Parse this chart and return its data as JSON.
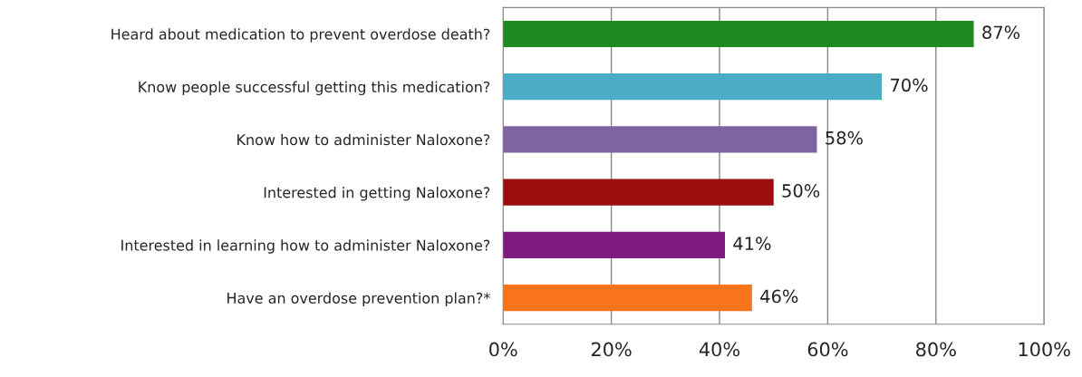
{
  "chart_data": {
    "type": "bar",
    "orientation": "horizontal",
    "categories": [
      "Heard about medication to prevent overdose death?",
      "Know people successful getting this medication?",
      "Know how to administer Naloxone?",
      "Interested in getting Naloxone?",
      "Interested in learning how to administer Naloxone?",
      "Have an overdose prevention plan?*"
    ],
    "values": [
      87,
      70,
      58,
      50,
      41,
      46
    ],
    "colors": [
      "#1f8a1f",
      "#4bacc6",
      "#8064a2",
      "#9c0e0e",
      "#7e1a80",
      "#f7731c"
    ],
    "value_labels": [
      "87%",
      "70%",
      "58%",
      "50%",
      "41%",
      "46%"
    ],
    "xlim": [
      0,
      100
    ],
    "xticks": [
      {
        "value": 0,
        "label": "0%"
      },
      {
        "value": 20,
        "label": "20%"
      },
      {
        "value": 40,
        "label": "40%"
      },
      {
        "value": 60,
        "label": "60%"
      },
      {
        "value": 80,
        "label": "80%"
      },
      {
        "value": 100,
        "label": "100%"
      }
    ],
    "grid": "x",
    "legend": false
  }
}
